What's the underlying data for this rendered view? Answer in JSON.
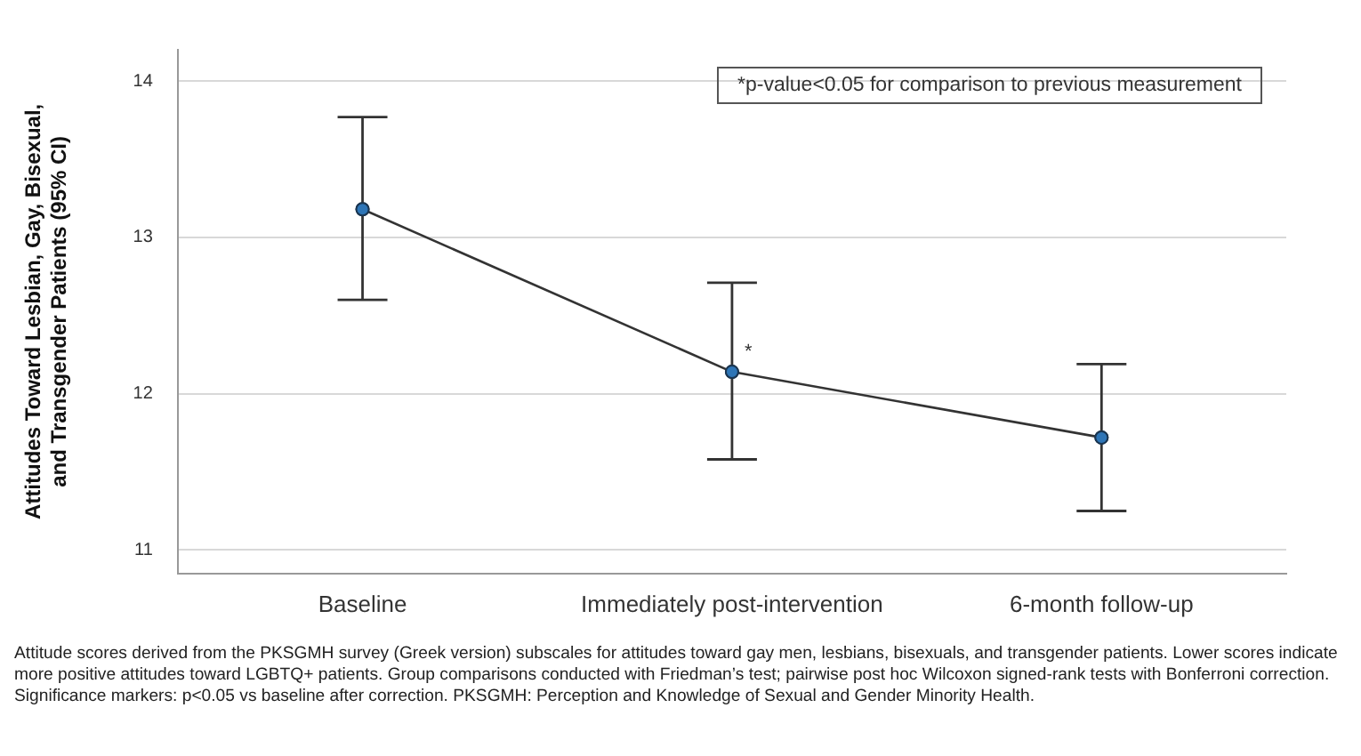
{
  "chart_data": {
    "type": "line",
    "ylabel": "Attitudes Toward Lesbian, Gay, Bisexual, and Transgender Patients (95% CI)",
    "categories": [
      "Baseline",
      "Immediately post-intervention",
      "6-month follow-up"
    ],
    "series": [
      {
        "color": "#2e75b6",
        "values": [
          13.18,
          12.14,
          11.72
        ],
        "errors": [
          [
            12.6,
            13.77
          ],
          [
            11.58,
            12.71
          ],
          [
            11.25,
            12.19
          ]
        ]
      }
    ],
    "ylim": [
      10.85,
      14.2
    ],
    "yticks": [
      11,
      12,
      13,
      14
    ],
    "grid": "y",
    "marker": "circle",
    "line_style": "solid",
    "legend": false,
    "annotations": [
      {
        "text": "*",
        "x": "Immediately post-intervention",
        "y": 12.14
      },
      "*p-value<0.05 for comparison to previous measurement",
      "Attitude scores derived from the PKSGMH survey (Greek version) subscales for attitudes toward gay men, lesbians, bisexuals, and transgender patients.  Lower scores indicate more positive attitudes toward LGBTQ+ patients. Group comparisons conducted with Friedman’s test; pairwise post hoc Wilcoxon signed-rank tests with Bonferroni correction. Significance markers: p<0.05 vs baseline after correction. PKSGMH: Perception and Knowledge of Sexual and Gender Minority Health."
    ]
  }
}
